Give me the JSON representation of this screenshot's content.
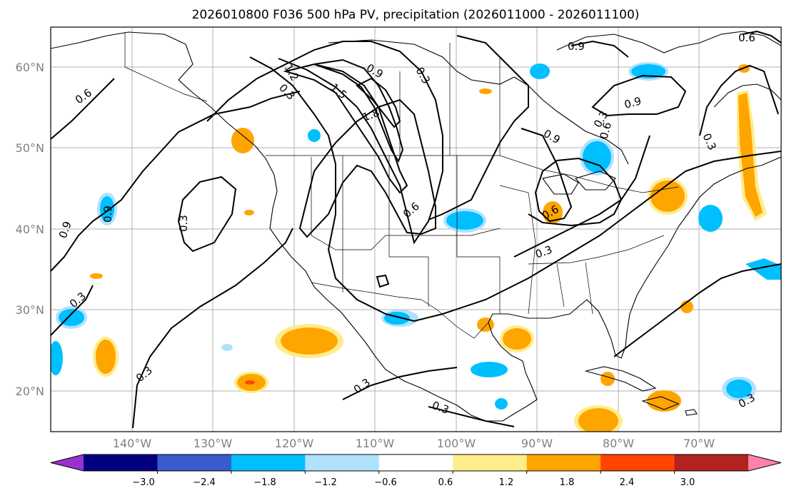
{
  "title": "2026010800 F036 500 hPa PV, precipitation (2026011000 - 2026011100)",
  "map": {
    "lat_labels": [
      "60°N",
      "50°N",
      "40°N",
      "30°N",
      "20°N"
    ],
    "lon_labels": [
      "140°W",
      "130°W",
      "120°W",
      "110°W",
      "100°W",
      "90°W",
      "80°W",
      "70°W"
    ],
    "contour_labels": [
      "0.6",
      "0.9",
      "0.3",
      "1.2",
      "0.3",
      "1.5",
      "1.8",
      "0.9",
      "0.3",
      "0.9",
      "0.9",
      "0.6",
      "0.9",
      "0.3",
      "0.6",
      "0.9",
      "0.3",
      "0.6",
      "0.6",
      "0.3",
      "0.3",
      "0.3",
      "0.3",
      "0.3",
      "0.3"
    ],
    "colors": {
      "pv_contour": "#000000",
      "grid": "#b0b0b0",
      "coast": "#000000"
    }
  },
  "colorbar": {
    "tick_labels": [
      "−3.0",
      "−2.4",
      "−1.8",
      "−1.2",
      "−0.6",
      "0.6",
      "1.2",
      "1.8",
      "2.4",
      "3.0"
    ],
    "colors": [
      "#9932cc",
      "#000080",
      "#3a5bcd",
      "#00bfff",
      "#b0e2ff",
      "#ffffff",
      "#ffec8b",
      "#ffa500",
      "#ff4500",
      "#b22222",
      "#ff82ab"
    ],
    "extend": "both"
  }
}
